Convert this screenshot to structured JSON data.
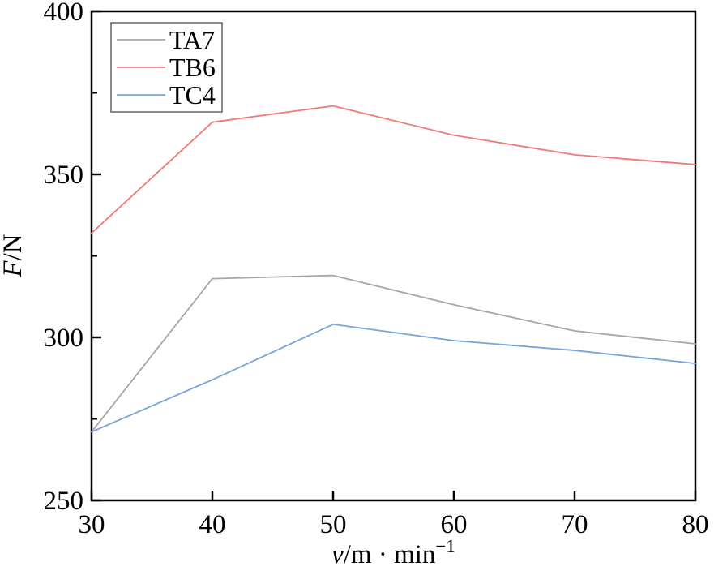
{
  "chart_data": {
    "type": "line",
    "title": "",
    "x": [
      30,
      40,
      50,
      60,
      70,
      80
    ],
    "series": [
      {
        "name": "TA7",
        "color": "#a6a6a6",
        "values": [
          271,
          318,
          319,
          310,
          302,
          298
        ]
      },
      {
        "name": "TB6",
        "color": "#ef7a76",
        "values": [
          332,
          366,
          371,
          362,
          356,
          353
        ]
      },
      {
        "name": "TC4",
        "color": "#78a4da",
        "values": [
          271,
          287,
          304,
          299,
          296,
          292
        ]
      }
    ],
    "xlabel": "v/m · min⁻¹",
    "ylabel": "F/N",
    "xlabel_parts": {
      "var": "v",
      "rest": "/m · min",
      "sup": "−1"
    },
    "ylabel_parts": {
      "var": "F",
      "rest": "/N"
    },
    "xlim": [
      30,
      80
    ],
    "ylim": [
      250,
      400
    ],
    "x_major_ticks": [
      30,
      40,
      50,
      60,
      70,
      80
    ],
    "y_major_ticks": [
      250,
      300,
      350,
      400
    ],
    "y_minor_ticks": [
      275,
      325,
      375
    ],
    "legend": {
      "position": "top-left",
      "entries": [
        "TA7",
        "TB6",
        "TC4"
      ]
    },
    "grid": false,
    "axis_color": "#000000",
    "legend_border_color": "#666666",
    "background": "#ffffff"
  }
}
